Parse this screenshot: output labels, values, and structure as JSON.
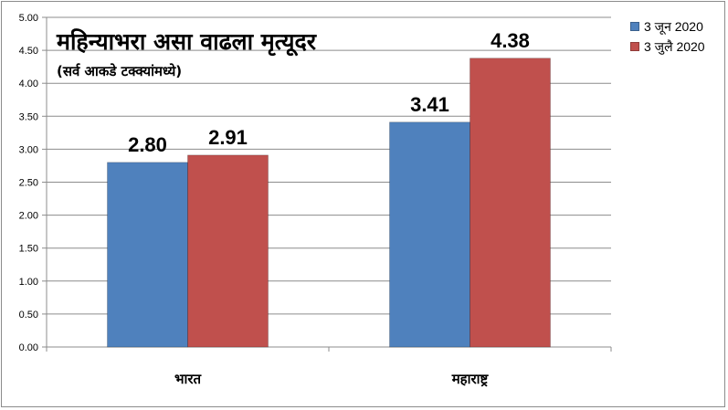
{
  "chart_data": {
    "type": "bar",
    "title": "महिन्याभरा असा वाढला मृत्यूदर",
    "subtitle": "(सर्व आकडे टक्क्यांमध्ये)",
    "categories": [
      "भारत",
      "महाराष्ट्र"
    ],
    "series": [
      {
        "name": "3 जून 2020",
        "color": "#4f81bd",
        "values": [
          2.8,
          3.41
        ]
      },
      {
        "name": "3 जुलै 2020",
        "color": "#c0504d",
        "values": [
          2.91,
          4.38
        ]
      }
    ],
    "data_labels": [
      [
        "2.80",
        "3.41"
      ],
      [
        "2.91",
        "4.38"
      ]
    ],
    "ylim": [
      0,
      5
    ],
    "y_ticks": [
      "0.00",
      "0.50",
      "1.00",
      "1.50",
      "2.00",
      "2.50",
      "3.00",
      "3.50",
      "4.00",
      "4.50",
      "5.00"
    ],
    "grid": true,
    "legend_position": "top-right"
  }
}
